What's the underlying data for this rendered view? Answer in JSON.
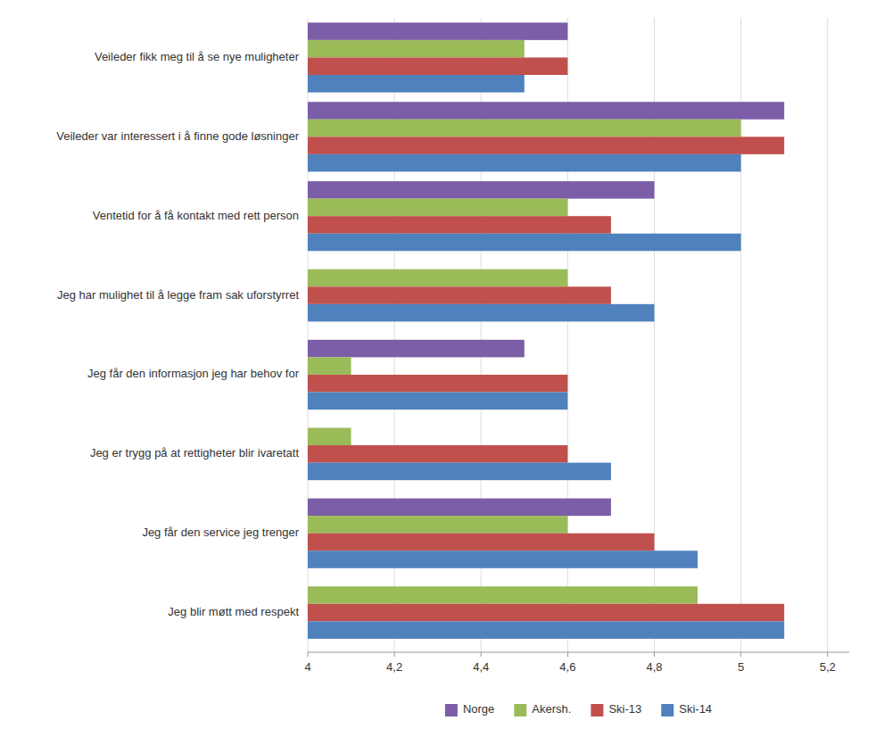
{
  "chart_data": {
    "type": "bar",
    "orientation": "horizontal",
    "categories": [
      "Jeg blir møtt med respekt",
      "Jeg får den service jeg trenger",
      "Jeg er trygg på at rettigheter blir ivaretatt",
      "Jeg får den informasjon jeg har behov for",
      "Jeg har mulighet til å legge fram sak uforstyrret",
      "Ventetid for å få kontakt med rett person",
      "Veileder var interessert i å finne gode løsninger",
      "Veileder fikk meg til å se nye muligheter"
    ],
    "series": [
      {
        "name": "Norge",
        "color": "#7B5EA7",
        "values": [
          null,
          4.7,
          null,
          4.5,
          null,
          4.8,
          5.1,
          4.6
        ]
      },
      {
        "name": "Akersh.",
        "color": "#9BBB59",
        "values": [
          4.9,
          4.6,
          4.1,
          4.1,
          4.6,
          4.6,
          5.0,
          4.5
        ]
      },
      {
        "name": "Ski-13",
        "color": "#C0504D",
        "values": [
          5.1,
          4.8,
          4.6,
          4.6,
          4.7,
          4.7,
          5.1,
          4.6
        ]
      },
      {
        "name": "Ski-14",
        "color": "#4F81BD",
        "values": [
          5.1,
          4.9,
          4.7,
          4.6,
          4.8,
          5.0,
          5.0,
          4.5
        ]
      }
    ],
    "xlim": [
      4.0,
      5.25
    ],
    "xticks": [
      4,
      {
        "value": 4.2,
        "label": "4,2"
      },
      {
        "value": 4.4,
        "label": "4,4"
      },
      {
        "value": 4.6,
        "label": "4,6"
      },
      {
        "value": 4.8,
        "label": "4,8"
      },
      5,
      {
        "value": 5.2,
        "label": "5,2"
      }
    ],
    "grid": true,
    "legend": "bottom"
  }
}
